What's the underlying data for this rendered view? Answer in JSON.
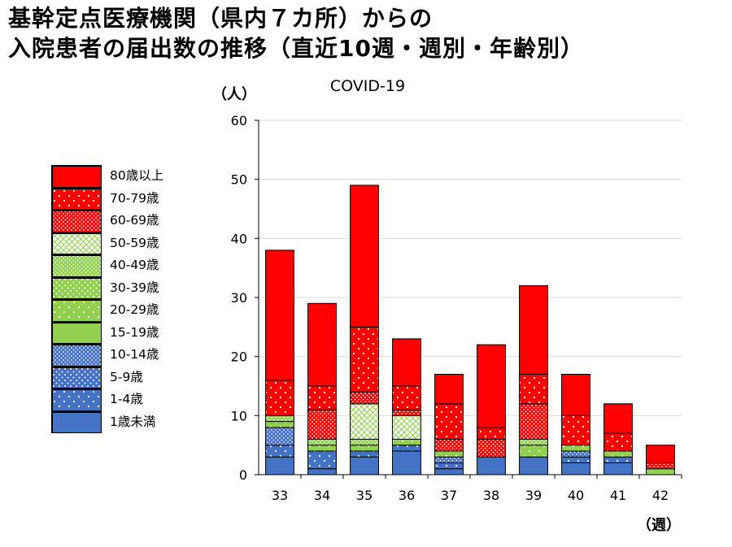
{
  "title": {
    "line1": "基幹定点医療機関（県内７カ所）からの",
    "line2": "入院患者の届出数の推移（直近10週・週別・年齢別）"
  },
  "chart_data": {
    "type": "bar",
    "stacked": true,
    "title": "COVID-19",
    "ylabel": "（人）",
    "xlabel": "（週）",
    "ylim": [
      0,
      60
    ],
    "yticks": [
      "0",
      "10",
      "20",
      "30",
      "40",
      "50",
      "60"
    ],
    "grid": true,
    "legend_position": "left",
    "categories": [
      "33",
      "34",
      "35",
      "36",
      "37",
      "38",
      "39",
      "40",
      "41",
      "42"
    ],
    "series": [
      {
        "name": "1歳未満",
        "color": "#4472C4",
        "pattern": "solid",
        "values": [
          3,
          1,
          3,
          4,
          1,
          3,
          3,
          2,
          2,
          0
        ]
      },
      {
        "name": "1-4歳",
        "color": "#4472C4",
        "pattern": "dots-sparse",
        "values": [
          2,
          3,
          1,
          1,
          1,
          0,
          0,
          1,
          1,
          0
        ]
      },
      {
        "name": "5-9歳",
        "color": "#4472C4",
        "pattern": "dots-medium",
        "values": [
          0,
          0,
          0,
          0,
          0,
          0,
          0,
          0,
          0,
          0
        ]
      },
      {
        "name": "10-14歳",
        "color": "#4472C4",
        "pattern": "dots-dense",
        "values": [
          3,
          0,
          0,
          0,
          1,
          0,
          0,
          1,
          0,
          0
        ]
      },
      {
        "name": "15-19歳",
        "color": "#92D050",
        "pattern": "solid",
        "values": [
          0,
          0,
          0,
          0,
          0,
          0,
          0,
          0,
          0,
          1
        ]
      },
      {
        "name": "20-29歳",
        "color": "#92D050",
        "pattern": "dots-sparse",
        "values": [
          1,
          1,
          1,
          1,
          1,
          0,
          2,
          1,
          1,
          0
        ]
      },
      {
        "name": "30-39歳",
        "color": "#92D050",
        "pattern": "dots-medium",
        "values": [
          0,
          0,
          0,
          0,
          0,
          0,
          0,
          0,
          0,
          0
        ]
      },
      {
        "name": "40-49歳",
        "color": "#92D050",
        "pattern": "dots-dense",
        "values": [
          1,
          1,
          1,
          0,
          0,
          0,
          1,
          0,
          0,
          0
        ]
      },
      {
        "name": "50-59歳",
        "color": "#92D050",
        "pattern": "cross",
        "values": [
          0,
          0,
          6,
          4,
          0,
          0,
          0,
          0,
          0,
          0
        ]
      },
      {
        "name": "60-69歳",
        "color": "#FF0000",
        "pattern": "dots-dense",
        "values": [
          0,
          5,
          2,
          1,
          2,
          3,
          6,
          0,
          0,
          1
        ]
      },
      {
        "name": "70-79歳",
        "color": "#FF0000",
        "pattern": "dots-sparse",
        "values": [
          6,
          4,
          11,
          4,
          6,
          2,
          5,
          5,
          3,
          0
        ]
      },
      {
        "name": "80歳以上",
        "color": "#FF0000",
        "pattern": "solid",
        "values": [
          22,
          14,
          24,
          8,
          5,
          14,
          15,
          7,
          5,
          3
        ]
      }
    ]
  }
}
